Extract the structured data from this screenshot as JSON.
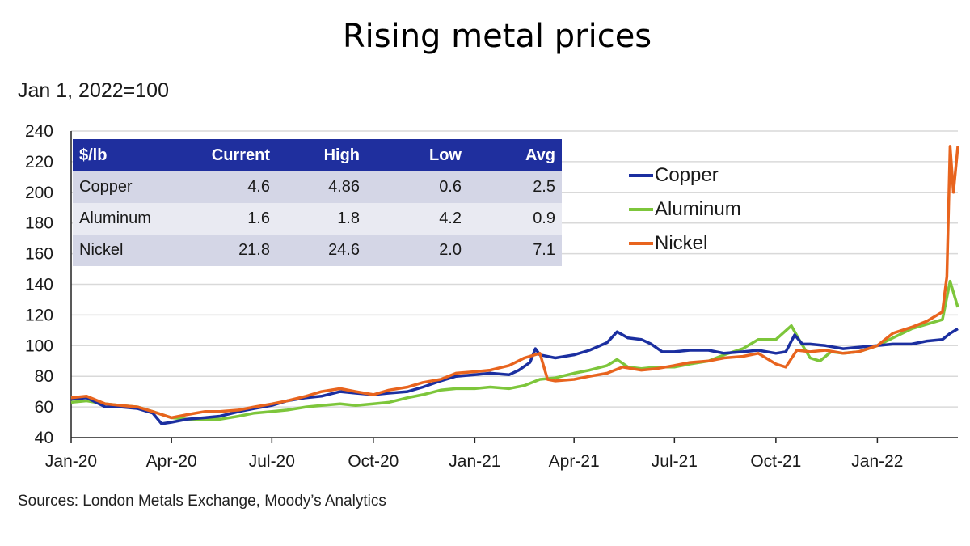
{
  "title": "Rising metal prices",
  "subtitle": "Jan 1, 2022=100",
  "source": "Sources: London Metals Exchange, Moody’s Analytics",
  "colors": {
    "copper": "#1b2fa0",
    "aluminum": "#7dc63b",
    "nickel": "#e8641e",
    "grid": "#d9d9d9"
  },
  "table": {
    "headers": [
      "$/lb",
      "Current",
      "High",
      "Low",
      "Avg"
    ],
    "rows": [
      [
        "Copper",
        "4.6",
        "4.86",
        "0.6",
        "2.5"
      ],
      [
        "Aluminum",
        "1.6",
        "1.8",
        "4.2",
        "0.9"
      ],
      [
        "Nickel",
        "21.8",
        "24.6",
        "2.0",
        "7.1"
      ]
    ]
  },
  "legend": [
    "Copper",
    "Aluminum",
    "Nickel"
  ],
  "chart_data": {
    "type": "line",
    "title": "Rising metal prices",
    "ylabel": "Jan 1, 2022=100",
    "xlim": [
      "2020-01-01",
      "2022-03-15"
    ],
    "ylim": [
      40,
      240
    ],
    "yticks": [
      40,
      60,
      80,
      100,
      120,
      140,
      160,
      180,
      200,
      220,
      240
    ],
    "xticks": [
      {
        "date": "2020-01-01",
        "label": "Jan-20"
      },
      {
        "date": "2020-04-01",
        "label": "Apr-20"
      },
      {
        "date": "2020-07-01",
        "label": "Jul-20"
      },
      {
        "date": "2020-10-01",
        "label": "Oct-20"
      },
      {
        "date": "2021-01-01",
        "label": "Jan-21"
      },
      {
        "date": "2021-04-01",
        "label": "Apr-21"
      },
      {
        "date": "2021-07-01",
        "label": "Jul-21"
      },
      {
        "date": "2021-10-01",
        "label": "Oct-21"
      },
      {
        "date": "2022-01-01",
        "label": "Jan-22"
      }
    ],
    "grid": "horizontal",
    "legend_position": "top-right",
    "series": [
      {
        "name": "Copper",
        "points": [
          [
            "2020-01-01",
            65
          ],
          [
            "2020-01-15",
            66
          ],
          [
            "2020-02-01",
            60
          ],
          [
            "2020-02-15",
            60
          ],
          [
            "2020-03-01",
            59
          ],
          [
            "2020-03-15",
            56
          ],
          [
            "2020-03-23",
            49
          ],
          [
            "2020-04-01",
            50
          ],
          [
            "2020-04-15",
            52
          ],
          [
            "2020-05-01",
            53
          ],
          [
            "2020-05-15",
            54
          ],
          [
            "2020-06-01",
            57
          ],
          [
            "2020-06-15",
            59
          ],
          [
            "2020-07-01",
            61
          ],
          [
            "2020-07-15",
            64
          ],
          [
            "2020-08-01",
            66
          ],
          [
            "2020-08-15",
            67
          ],
          [
            "2020-09-01",
            70
          ],
          [
            "2020-09-15",
            69
          ],
          [
            "2020-10-01",
            68
          ],
          [
            "2020-10-15",
            69
          ],
          [
            "2020-11-01",
            70
          ],
          [
            "2020-11-15",
            73
          ],
          [
            "2020-12-01",
            77
          ],
          [
            "2020-12-15",
            80
          ],
          [
            "2021-01-01",
            81
          ],
          [
            "2021-01-15",
            82
          ],
          [
            "2021-02-01",
            81
          ],
          [
            "2021-02-10",
            84
          ],
          [
            "2021-02-20",
            89
          ],
          [
            "2021-02-25",
            98
          ],
          [
            "2021-03-01",
            94
          ],
          [
            "2021-03-15",
            92
          ],
          [
            "2021-04-01",
            94
          ],
          [
            "2021-04-15",
            97
          ],
          [
            "2021-05-01",
            102
          ],
          [
            "2021-05-10",
            109
          ],
          [
            "2021-05-20",
            105
          ],
          [
            "2021-06-01",
            104
          ],
          [
            "2021-06-10",
            101
          ],
          [
            "2021-06-20",
            96
          ],
          [
            "2021-07-01",
            96
          ],
          [
            "2021-07-15",
            97
          ],
          [
            "2021-08-01",
            97
          ],
          [
            "2021-08-15",
            95
          ],
          [
            "2021-09-01",
            96
          ],
          [
            "2021-09-15",
            97
          ],
          [
            "2021-10-01",
            95
          ],
          [
            "2021-10-10",
            96
          ],
          [
            "2021-10-18",
            107
          ],
          [
            "2021-10-25",
            101
          ],
          [
            "2021-11-01",
            101
          ],
          [
            "2021-11-15",
            100
          ],
          [
            "2021-12-01",
            98
          ],
          [
            "2021-12-15",
            99
          ],
          [
            "2022-01-01",
            100
          ],
          [
            "2022-01-15",
            101
          ],
          [
            "2022-02-01",
            101
          ],
          [
            "2022-02-15",
            103
          ],
          [
            "2022-03-01",
            104
          ],
          [
            "2022-03-08",
            108
          ],
          [
            "2022-03-15",
            111
          ]
        ]
      },
      {
        "name": "Aluminum",
        "points": [
          [
            "2020-01-01",
            63
          ],
          [
            "2020-01-15",
            64
          ],
          [
            "2020-02-01",
            62
          ],
          [
            "2020-02-15",
            61
          ],
          [
            "2020-03-01",
            60
          ],
          [
            "2020-03-15",
            57
          ],
          [
            "2020-04-01",
            53
          ],
          [
            "2020-04-15",
            52
          ],
          [
            "2020-05-01",
            52
          ],
          [
            "2020-05-15",
            52
          ],
          [
            "2020-06-01",
            54
          ],
          [
            "2020-06-15",
            56
          ],
          [
            "2020-07-01",
            57
          ],
          [
            "2020-07-15",
            58
          ],
          [
            "2020-08-01",
            60
          ],
          [
            "2020-08-15",
            61
          ],
          [
            "2020-09-01",
            62
          ],
          [
            "2020-09-15",
            61
          ],
          [
            "2020-10-01",
            62
          ],
          [
            "2020-10-15",
            63
          ],
          [
            "2020-11-01",
            66
          ],
          [
            "2020-11-15",
            68
          ],
          [
            "2020-12-01",
            71
          ],
          [
            "2020-12-15",
            72
          ],
          [
            "2021-01-01",
            72
          ],
          [
            "2021-01-15",
            73
          ],
          [
            "2021-02-01",
            72
          ],
          [
            "2021-02-15",
            74
          ],
          [
            "2021-03-01",
            78
          ],
          [
            "2021-03-15",
            79
          ],
          [
            "2021-04-01",
            82
          ],
          [
            "2021-04-15",
            84
          ],
          [
            "2021-05-01",
            87
          ],
          [
            "2021-05-10",
            91
          ],
          [
            "2021-05-20",
            86
          ],
          [
            "2021-06-01",
            85
          ],
          [
            "2021-06-15",
            86
          ],
          [
            "2021-07-01",
            86
          ],
          [
            "2021-07-15",
            88
          ],
          [
            "2021-08-01",
            90
          ],
          [
            "2021-08-15",
            94
          ],
          [
            "2021-09-01",
            98
          ],
          [
            "2021-09-15",
            104
          ],
          [
            "2021-10-01",
            104
          ],
          [
            "2021-10-15",
            113
          ],
          [
            "2021-10-22",
            104
          ],
          [
            "2021-11-01",
            92
          ],
          [
            "2021-11-10",
            90
          ],
          [
            "2021-11-20",
            96
          ],
          [
            "2021-12-01",
            95
          ],
          [
            "2021-12-15",
            96
          ],
          [
            "2022-01-01",
            100
          ],
          [
            "2022-01-15",
            105
          ],
          [
            "2022-02-01",
            111
          ],
          [
            "2022-02-15",
            114
          ],
          [
            "2022-03-01",
            117
          ],
          [
            "2022-03-08",
            142
          ],
          [
            "2022-03-15",
            125
          ]
        ]
      },
      {
        "name": "Nickel",
        "points": [
          [
            "2020-01-01",
            66
          ],
          [
            "2020-01-15",
            67
          ],
          [
            "2020-02-01",
            62
          ],
          [
            "2020-02-15",
            61
          ],
          [
            "2020-03-01",
            60
          ],
          [
            "2020-03-15",
            57
          ],
          [
            "2020-04-01",
            53
          ],
          [
            "2020-04-15",
            55
          ],
          [
            "2020-05-01",
            57
          ],
          [
            "2020-05-15",
            57
          ],
          [
            "2020-06-01",
            58
          ],
          [
            "2020-06-15",
            60
          ],
          [
            "2020-07-01",
            62
          ],
          [
            "2020-07-15",
            64
          ],
          [
            "2020-08-01",
            67
          ],
          [
            "2020-08-15",
            70
          ],
          [
            "2020-09-01",
            72
          ],
          [
            "2020-09-15",
            70
          ],
          [
            "2020-10-01",
            68
          ],
          [
            "2020-10-15",
            71
          ],
          [
            "2020-11-01",
            73
          ],
          [
            "2020-11-15",
            76
          ],
          [
            "2020-12-01",
            78
          ],
          [
            "2020-12-15",
            82
          ],
          [
            "2021-01-01",
            83
          ],
          [
            "2021-01-15",
            84
          ],
          [
            "2021-02-01",
            87
          ],
          [
            "2021-02-15",
            92
          ],
          [
            "2021-03-01",
            95
          ],
          [
            "2021-03-08",
            78
          ],
          [
            "2021-03-15",
            77
          ],
          [
            "2021-04-01",
            78
          ],
          [
            "2021-04-15",
            80
          ],
          [
            "2021-05-01",
            82
          ],
          [
            "2021-05-15",
            86
          ],
          [
            "2021-06-01",
            84
          ],
          [
            "2021-06-15",
            85
          ],
          [
            "2021-07-01",
            87
          ],
          [
            "2021-07-15",
            89
          ],
          [
            "2021-08-01",
            90
          ],
          [
            "2021-08-15",
            92
          ],
          [
            "2021-09-01",
            93
          ],
          [
            "2021-09-15",
            95
          ],
          [
            "2021-10-01",
            88
          ],
          [
            "2021-10-10",
            86
          ],
          [
            "2021-10-20",
            97
          ],
          [
            "2021-11-01",
            96
          ],
          [
            "2021-11-15",
            97
          ],
          [
            "2021-12-01",
            95
          ],
          [
            "2021-12-15",
            96
          ],
          [
            "2022-01-01",
            100
          ],
          [
            "2022-01-15",
            108
          ],
          [
            "2022-02-01",
            112
          ],
          [
            "2022-02-15",
            116
          ],
          [
            "2022-03-01",
            122
          ],
          [
            "2022-03-05",
            145
          ],
          [
            "2022-03-08",
            230
          ],
          [
            "2022-03-11",
            200
          ],
          [
            "2022-03-15",
            230
          ]
        ]
      }
    ]
  }
}
